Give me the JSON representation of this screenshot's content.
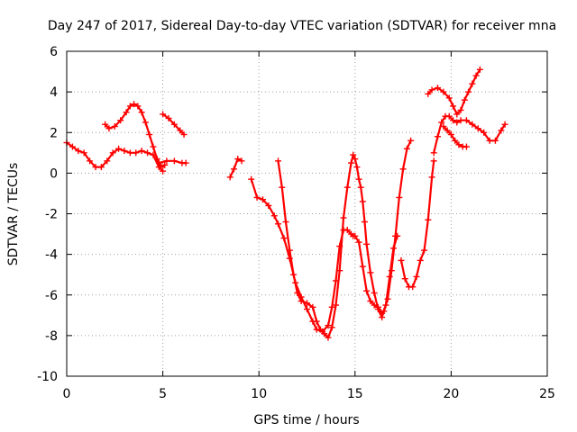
{
  "chart_data": {
    "type": "line",
    "title": "Day 247 of 2017, Sidereal Day-to-day VTEC variation (SDTVAR) for receiver mna",
    "xlabel": "GPS time / hours",
    "ylabel": "SDTVAR / TECUs",
    "xlim": [
      0,
      25
    ],
    "ylim": [
      -10,
      6
    ],
    "xticks": [
      "0",
      "5",
      "10",
      "15",
      "20",
      "25"
    ],
    "yticks": [
      "6",
      "4",
      "2",
      "0",
      "-2",
      "-4",
      "-6",
      "-8",
      "-10"
    ],
    "grid": true,
    "marker": "plus",
    "color": "#ff0000",
    "series": [
      {
        "x": [
          0.0,
          0.3,
          0.6,
          0.9,
          1.2,
          1.5,
          1.8,
          2.1,
          2.4,
          2.7,
          3.0,
          3.3,
          3.6,
          3.9,
          4.2,
          4.5,
          4.8,
          5.0
        ],
        "y": [
          1.5,
          1.3,
          1.1,
          1.0,
          0.6,
          0.3,
          0.3,
          0.6,
          1.0,
          1.2,
          1.1,
          1.0,
          1.0,
          1.1,
          1.0,
          0.9,
          0.3,
          0.1
        ]
      },
      {
        "x": [
          2.0,
          2.2,
          2.5,
          2.8,
          3.1,
          3.3,
          3.5,
          3.7,
          3.9,
          4.1,
          4.3,
          4.5,
          4.7,
          4.9,
          5.1
        ],
        "y": [
          2.4,
          2.2,
          2.3,
          2.6,
          3.0,
          3.3,
          3.4,
          3.3,
          3.0,
          2.5,
          1.9,
          1.3,
          0.7,
          0.3,
          0.4
        ]
      },
      {
        "x": [
          4.8,
          5.2,
          5.6,
          6.0,
          6.2
        ],
        "y": [
          0.5,
          0.6,
          0.6,
          0.5,
          0.5
        ]
      },
      {
        "x": [
          5.0,
          5.3,
          5.6,
          5.9,
          6.1
        ],
        "y": [
          2.9,
          2.7,
          2.4,
          2.1,
          1.9
        ]
      },
      {
        "x": [
          8.5,
          8.7,
          8.9,
          9.1
        ],
        "y": [
          -0.2,
          0.2,
          0.7,
          0.6
        ]
      },
      {
        "x": [
          9.6,
          9.9,
          10.2,
          10.5,
          10.8,
          11.0,
          11.3,
          11.6,
          11.9,
          12.2,
          12.5,
          12.8,
          13.0,
          13.3,
          13.6,
          13.8,
          14.0,
          14.2,
          14.4,
          14.6,
          14.8,
          14.9,
          15.0,
          15.2,
          15.4,
          15.6,
          15.8,
          16.0,
          16.2,
          16.4,
          16.5,
          16.7,
          16.9,
          17.1,
          17.3,
          17.5,
          17.7,
          17.9
        ],
        "y": [
          -0.3,
          -1.2,
          -1.3,
          -1.6,
          -2.1,
          -2.5,
          -3.2,
          -4.2,
          -5.4,
          -6.1,
          -6.7,
          -7.3,
          -7.7,
          -7.8,
          -7.5,
          -6.6,
          -5.3,
          -3.6,
          -2.8,
          -2.8,
          -3.0,
          -3.1,
          -3.1,
          -3.4,
          -4.6,
          -5.8,
          -6.3,
          -6.5,
          -6.6,
          -6.9,
          -6.8,
          -6.2,
          -4.8,
          -3.1,
          -1.2,
          0.2,
          1.2,
          1.6
        ]
      },
      {
        "x": [
          11.0,
          11.2,
          11.4,
          11.6,
          11.8,
          12.0,
          12.2,
          12.5,
          12.8,
          13.0,
          13.2,
          13.4,
          13.6,
          13.8,
          14.0,
          14.2,
          14.4,
          14.6,
          14.8,
          14.9,
          15.0,
          15.1,
          15.2,
          15.3,
          15.4,
          15.5,
          15.6,
          15.8,
          16.0,
          16.2,
          16.4,
          16.6,
          16.8,
          17.0,
          17.2
        ],
        "y": [
          0.6,
          -0.7,
          -2.4,
          -3.8,
          -5.0,
          -5.9,
          -6.3,
          -6.4,
          -6.6,
          -7.3,
          -7.7,
          -7.9,
          -8.1,
          -7.6,
          -6.5,
          -4.8,
          -2.2,
          -0.7,
          0.5,
          0.9,
          0.7,
          0.3,
          -0.3,
          -0.7,
          -1.4,
          -2.4,
          -3.5,
          -4.9,
          -5.9,
          -6.7,
          -7.1,
          -6.5,
          -5.1,
          -3.7,
          -3.1
        ]
      },
      {
        "x": [
          17.4,
          17.6,
          17.8,
          18.0,
          18.2,
          18.4,
          18.6,
          18.8,
          19.0,
          19.1
        ],
        "y": [
          -4.3,
          -5.2,
          -5.6,
          -5.6,
          -5.1,
          -4.3,
          -3.8,
          -2.3,
          -0.2,
          0.6
        ]
      },
      {
        "x": [
          18.8,
          19.0,
          19.3,
          19.6,
          19.9,
          20.1,
          20.3,
          20.5,
          20.7,
          20.9,
          21.1,
          21.3,
          21.5
        ],
        "y": [
          3.9,
          4.1,
          4.2,
          4.0,
          3.7,
          3.3,
          2.9,
          3.1,
          3.6,
          4.0,
          4.4,
          4.8,
          5.1
        ]
      },
      {
        "x": [
          19.1,
          19.3,
          19.5,
          19.7,
          19.9,
          20.1,
          20.3,
          20.5,
          20.8,
          21.1,
          21.4,
          21.7,
          22.0,
          22.3,
          22.6,
          22.8
        ],
        "y": [
          1.0,
          1.8,
          2.5,
          2.8,
          2.8,
          2.6,
          2.5,
          2.6,
          2.6,
          2.4,
          2.2,
          2.0,
          1.6,
          1.6,
          2.1,
          2.4
        ]
      },
      {
        "x": [
          19.6,
          19.8,
          20.0,
          20.2,
          20.4,
          20.6,
          20.8
        ],
        "y": [
          2.3,
          2.1,
          1.9,
          1.6,
          1.4,
          1.3,
          1.3
        ]
      }
    ]
  }
}
